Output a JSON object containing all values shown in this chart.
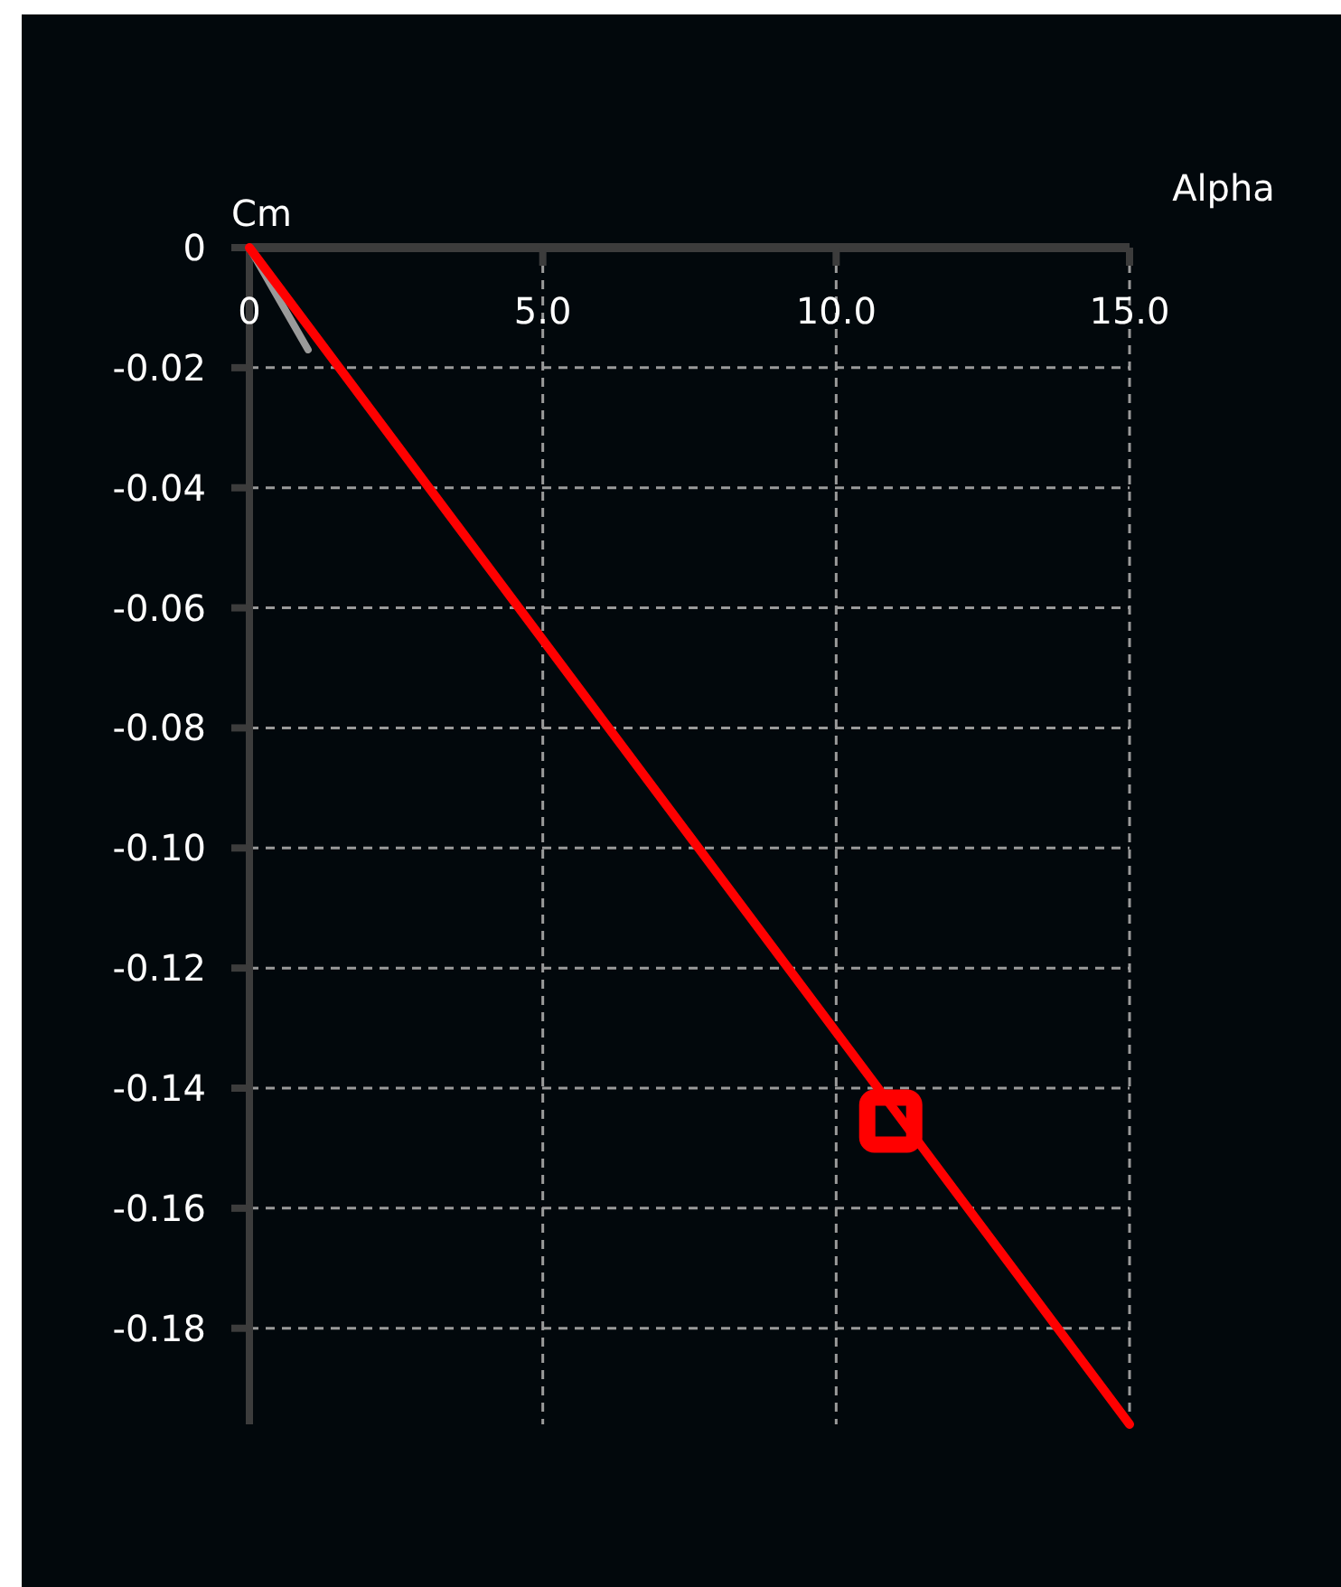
{
  "chart_data": {
    "type": "line",
    "xlabel": "Alpha",
    "ylabel": "Cm",
    "xlim": [
      0,
      15
    ],
    "ylim": [
      -0.196,
      0
    ],
    "xticks": [
      {
        "value": 0,
        "label": "0"
      },
      {
        "value": 5,
        "label": "5.0"
      },
      {
        "value": 10,
        "label": "10.0"
      },
      {
        "value": 15,
        "label": "15.0"
      }
    ],
    "yticks": [
      {
        "value": 0,
        "label": "0"
      },
      -0.02,
      -0.04,
      -0.06,
      -0.08,
      {
        "value": -0.1,
        "label": "-0.10"
      },
      -0.12,
      -0.14,
      -0.16,
      -0.18
    ],
    "grid": true,
    "line_style": "solid",
    "series": [
      {
        "color": "#9a9a9a",
        "x": [
          0,
          1.0
        ],
        "values": [
          0,
          -0.017
        ]
      },
      {
        "color": "#ff0000",
        "x": [
          0,
          15
        ],
        "values": [
          0,
          -0.196
        ]
      },
      {
        "type": "scatter",
        "color": "#ff0000",
        "marker": "square",
        "x": [
          10.93
        ],
        "values": [
          -0.1455
        ]
      }
    ]
  }
}
